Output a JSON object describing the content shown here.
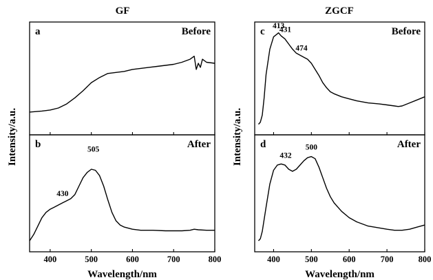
{
  "chart_data": [
    {
      "type": "line",
      "group_title": "GF",
      "xlabel": "Wavelength/nm",
      "ylabel": "Intensity/a.u.",
      "xlim": [
        350,
        800
      ],
      "xticks": [
        "400",
        "500",
        "600",
        "700",
        "800"
      ],
      "grid": false,
      "panels": [
        {
          "label": "a",
          "state": "Before",
          "annotations": [],
          "series": [
            {
              "x": [
                350,
                380,
                400,
                420,
                440,
                460,
                480,
                500,
                520,
                540,
                560,
                580,
                600,
                620,
                640,
                660,
                680,
                700,
                720,
                740,
                750,
                755,
                760,
                765,
                770,
                780,
                800
              ],
              "y": [
                0.18,
                0.19,
                0.2,
                0.22,
                0.26,
                0.32,
                0.39,
                0.47,
                0.52,
                0.56,
                0.57,
                0.58,
                0.6,
                0.61,
                0.62,
                0.63,
                0.64,
                0.65,
                0.67,
                0.7,
                0.73,
                0.6,
                0.66,
                0.62,
                0.7,
                0.67,
                0.66
              ]
            }
          ]
        },
        {
          "label": "b",
          "state": "After",
          "annotations": [
            {
              "text": "430",
              "x": 430,
              "y": 0.46
            },
            {
              "text": "505",
              "x": 505,
              "y": 0.88
            }
          ],
          "series": [
            {
              "x": [
                350,
                360,
                370,
                380,
                390,
                400,
                410,
                420,
                430,
                440,
                450,
                460,
                470,
                480,
                490,
                500,
                510,
                520,
                530,
                540,
                550,
                560,
                570,
                580,
                600,
                620,
                650,
                680,
                700,
                720,
                740,
                750,
                760,
                780,
                800
              ],
              "y": [
                0.06,
                0.12,
                0.2,
                0.28,
                0.33,
                0.36,
                0.38,
                0.4,
                0.42,
                0.44,
                0.46,
                0.5,
                0.58,
                0.66,
                0.71,
                0.74,
                0.73,
                0.68,
                0.58,
                0.45,
                0.33,
                0.25,
                0.21,
                0.19,
                0.17,
                0.16,
                0.16,
                0.155,
                0.155,
                0.155,
                0.16,
                0.17,
                0.165,
                0.16,
                0.16
              ]
            }
          ]
        }
      ]
    },
    {
      "type": "line",
      "group_title": "ZGCF",
      "xlabel": "Wavelength/nm",
      "ylabel": "Intensity/a.u.",
      "xlim": [
        350,
        800
      ],
      "xticks": [
        "400",
        "500",
        "600",
        "700",
        "800"
      ],
      "grid": false,
      "panels": [
        {
          "label": "c",
          "state": "Before",
          "annotations": [
            {
              "text": "413",
              "x": 413,
              "y": 0.98
            },
            {
              "text": "431",
              "x": 431,
              "y": 0.94
            },
            {
              "text": "474",
              "x": 474,
              "y": 0.76
            }
          ],
          "series": [
            {
              "x": [
                360,
                365,
                370,
                375,
                380,
                390,
                400,
                410,
                413,
                420,
                430,
                440,
                450,
                460,
                470,
                480,
                490,
                500,
                510,
                520,
                530,
                540,
                550,
                560,
                580,
                600,
                620,
                650,
                680,
                700,
                720,
                730,
                740,
                760,
                780,
                800
              ],
              "y": [
                0.06,
                0.08,
                0.15,
                0.32,
                0.55,
                0.8,
                0.92,
                0.95,
                0.96,
                0.93,
                0.9,
                0.85,
                0.8,
                0.76,
                0.74,
                0.72,
                0.7,
                0.66,
                0.6,
                0.54,
                0.47,
                0.42,
                0.38,
                0.36,
                0.33,
                0.31,
                0.29,
                0.27,
                0.26,
                0.25,
                0.24,
                0.235,
                0.24,
                0.27,
                0.3,
                0.33
              ]
            }
          ]
        },
        {
          "label": "d",
          "state": "After",
          "annotations": [
            {
              "text": "432",
              "x": 432,
              "y": 0.82
            },
            {
              "text": "500",
              "x": 500,
              "y": 0.9
            }
          ],
          "series": [
            {
              "x": [
                360,
                365,
                370,
                380,
                390,
                400,
                410,
                420,
                430,
                440,
                450,
                460,
                470,
                480,
                490,
                500,
                510,
                520,
                530,
                540,
                550,
                560,
                580,
                600,
                620,
                650,
                700,
                720,
                740,
                760,
                780,
                800
              ],
              "y": [
                0.06,
                0.08,
                0.15,
                0.38,
                0.6,
                0.73,
                0.78,
                0.79,
                0.78,
                0.74,
                0.72,
                0.74,
                0.78,
                0.82,
                0.85,
                0.86,
                0.84,
                0.76,
                0.66,
                0.56,
                0.48,
                0.42,
                0.34,
                0.28,
                0.24,
                0.2,
                0.17,
                0.16,
                0.16,
                0.17,
                0.19,
                0.21
              ]
            }
          ]
        }
      ]
    }
  ]
}
